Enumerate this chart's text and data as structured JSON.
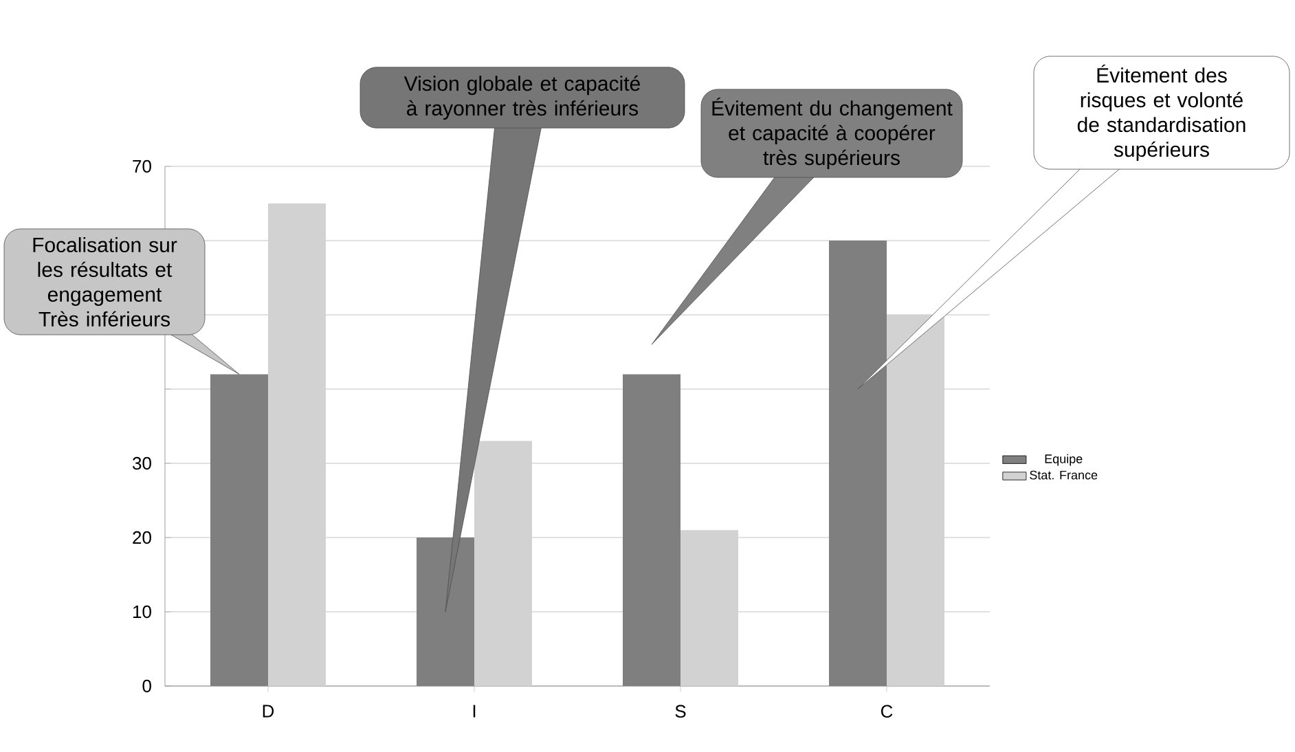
{
  "chart_data": {
    "type": "bar",
    "categories": [
      "D",
      "I",
      "S",
      "C"
    ],
    "series": [
      {
        "name": "Equipe",
        "color": "#7f7f7f",
        "values": [
          42,
          20,
          42,
          60
        ]
      },
      {
        "name": "Stat. France",
        "color": "#d2d2d2",
        "values": [
          65,
          33,
          21,
          50
        ]
      }
    ],
    "ylim": [
      0,
      70
    ],
    "yticks": [
      0,
      10,
      20,
      30,
      {
        "value": 40,
        "label": null
      },
      {
        "value": 50,
        "label": null
      },
      {
        "value": 60,
        "label": null
      },
      70
    ],
    "grid": "y",
    "legend": "right",
    "annotations": [
      "Focalisation sur les résultats et engagement Très inférieurs",
      "Vision globale et capacité à rayonner très inférieurs",
      "Évitement du changement et capacité à coopérer très supérieurs",
      "Évitement des risques et volonté de standardisation supérieurs"
    ]
  }
}
